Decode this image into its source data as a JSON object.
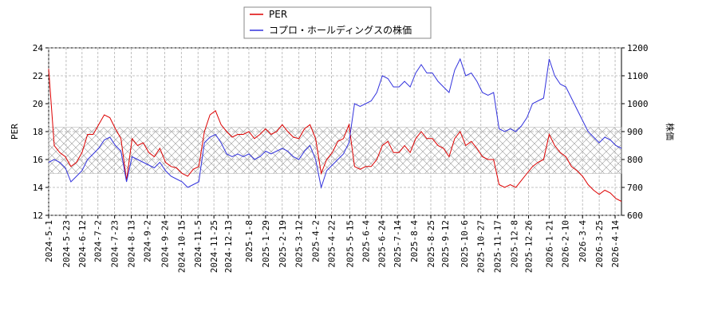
{
  "chart_data": {
    "type": "line",
    "ylabel": "PER",
    "y2label": "株価",
    "x": [
      "2024-5-1",
      "2024-5-8",
      "2024-5-15",
      "2024-5-22",
      "2024-5-29",
      "2024-6-5",
      "2024-6-12",
      "2024-6-19",
      "2024-6-26",
      "2024-7-3",
      "2024-7-10",
      "2024-7-17",
      "2024-7-24",
      "2024-7-31",
      "2024-8-7",
      "2024-8-14",
      "2024-8-21",
      "2024-8-28",
      "2024-9-4",
      "2024-9-11",
      "2024-9-18",
      "2024-9-25",
      "2024-10-2",
      "2024-10-9",
      "2024-10-16",
      "2024-10-23",
      "2024-10-30",
      "2024-11-6",
      "2024-11-13",
      "2024-11-20",
      "2024-11-27",
      "2024-12-4",
      "2024-12-11",
      "2024-12-18",
      "2024-12-25",
      "2025-1-1",
      "2025-1-8",
      "2025-1-15",
      "2025-1-22",
      "2025-1-29",
      "2025-2-5",
      "2025-2-12",
      "2025-2-19",
      "2025-2-26",
      "2025-3-5",
      "2025-3-12",
      "2025-3-19",
      "2025-3-26",
      "2025-4-2",
      "2025-4-9",
      "2025-4-16",
      "2025-4-23",
      "2025-4-30",
      "2025-5-7",
      "2025-5-14",
      "2025-5-21",
      "2025-5-28",
      "2025-6-4",
      "2025-6-11",
      "2025-6-18",
      "2025-6-25",
      "2025-7-2",
      "2025-7-9",
      "2025-7-16",
      "2025-7-23",
      "2025-7-30",
      "2025-8-6",
      "2025-8-13",
      "2025-8-20",
      "2025-8-27",
      "2025-9-3",
      "2025-9-10",
      "2025-9-17",
      "2025-9-24",
      "2025-10-1",
      "2025-10-8",
      "2025-10-15",
      "2025-10-22",
      "2025-10-29",
      "2025-11-5",
      "2025-11-12",
      "2025-11-19",
      "2025-11-26",
      "2025-12-3",
      "2025-12-10",
      "2025-12-17",
      "2025-12-24",
      "2025-12-31",
      "2026-1-7",
      "2026-1-14",
      "2026-1-21",
      "2026-1-28",
      "2026-2-4",
      "2026-2-11",
      "2026-2-18",
      "2026-2-25",
      "2026-3-4",
      "2026-3-11",
      "2026-3-18",
      "2026-3-25",
      "2026-4-1",
      "2026-4-8",
      "2026-4-15",
      "2026-4-22"
    ],
    "series": [
      {
        "name": "PER",
        "color": "#dd0000",
        "values": [
          22.5,
          17.0,
          16.5,
          16.2,
          15.5,
          15.8,
          16.5,
          17.8,
          17.8,
          18.5,
          19.2,
          19.0,
          18.2,
          17.5,
          14.5,
          17.5,
          17.0,
          17.2,
          16.5,
          16.2,
          16.8,
          15.8,
          15.5,
          15.4,
          15.0,
          14.8,
          15.3,
          15.5,
          18.0,
          19.2,
          19.5,
          18.5,
          18.0,
          17.6,
          17.8,
          17.8,
          18.0,
          17.5,
          17.8,
          18.2,
          17.8,
          18.0,
          18.5,
          18.0,
          17.6,
          17.5,
          18.2,
          18.5,
          17.5,
          15.0,
          16.0,
          16.5,
          17.3,
          17.5,
          18.5,
          15.5,
          15.3,
          15.5,
          15.5,
          16.0,
          17.0,
          17.3,
          16.5,
          16.5,
          17.0,
          16.5,
          17.5,
          18.0,
          17.5,
          17.5,
          17.0,
          16.8,
          16.2,
          17.5,
          18.0,
          17.0,
          17.3,
          16.8,
          16.2,
          16.0,
          16.0,
          14.2,
          14.0,
          14.2,
          14.0,
          14.5,
          15.0,
          15.5,
          15.8,
          16.0,
          17.8,
          17.0,
          16.5,
          16.2,
          15.5,
          15.2,
          14.8,
          14.2,
          13.8,
          13.5,
          13.8,
          13.6,
          13.2,
          13.0
        ]
      },
      {
        "name": "コプロ・ホールディングスの株価",
        "color": "#3333dd",
        "axis": "y2",
        "values": [
          790,
          800,
          790,
          770,
          720,
          740,
          760,
          800,
          820,
          840,
          870,
          880,
          850,
          830,
          720,
          810,
          800,
          790,
          780,
          770,
          790,
          760,
          740,
          730,
          720,
          700,
          710,
          720,
          860,
          880,
          890,
          860,
          820,
          810,
          820,
          810,
          820,
          800,
          810,
          830,
          820,
          830,
          840,
          830,
          810,
          800,
          830,
          850,
          800,
          700,
          760,
          780,
          800,
          820,
          860,
          1000,
          990,
          1000,
          1010,
          1040,
          1100,
          1090,
          1060,
          1060,
          1080,
          1060,
          1110,
          1140,
          1110,
          1110,
          1080,
          1060,
          1040,
          1120,
          1160,
          1100,
          1110,
          1080,
          1040,
          1030,
          1040,
          910,
          900,
          910,
          900,
          920,
          950,
          1000,
          1010,
          1020,
          1160,
          1100,
          1070,
          1060,
          1020,
          980,
          940,
          900,
          880,
          860,
          880,
          870,
          850,
          840
        ]
      }
    ],
    "band": [
      15,
      18.3
    ],
    "xlim": [
      "2024-5-1",
      "2026-4-22"
    ],
    "xticks": [
      "2024-5-1",
      "2024-5-23",
      "2024-6-12",
      "2024-7-2",
      "2024-7-23",
      "2024-8-13",
      "2024-9-2",
      "2024-9-24",
      "2024-10-15",
      "2024-11-5",
      "2024-11-25",
      "2024-12-13",
      "2025-1-8",
      "2025-1-29",
      "2025-2-19",
      "2025-3-12",
      "2025-4-2",
      "2025-4-22",
      "2025-5-15",
      "2025-6-4",
      "2025-6-24",
      "2025-7-14",
      "2025-8-4",
      "2025-8-25",
      "2025-9-12",
      "2025-10-6",
      "2025-10-27",
      "2025-11-17",
      "2025-12-8",
      "2025-12-26",
      "2026-1-21",
      "2026-2-10",
      "2026-3-4",
      "2026-3-25",
      "2026-4-14"
    ],
    "ylim": [
      12,
      24
    ],
    "yticks": [
      12,
      14,
      16,
      18,
      20,
      22,
      24
    ],
    "y2lim": [
      600,
      1200
    ],
    "y2ticks": [
      600,
      700,
      800,
      900,
      1000,
      1100,
      1200
    ],
    "grid": true
  }
}
